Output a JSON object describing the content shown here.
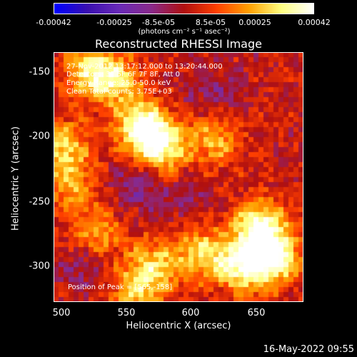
{
  "colorbar": {
    "ticks": [
      "-0.00042",
      "-0.00025",
      "-8.5e-05",
      "8.5e-05",
      "0.00025",
      "0.00042"
    ],
    "units": "(photons cm⁻² s⁻¹ asec⁻²)",
    "range": [
      -0.00042,
      0.00042
    ],
    "colormap": [
      "#0000ff",
      "#3a0fb0",
      "#6a2bb8",
      "#8a2a8a",
      "#b01010",
      "#ff4000",
      "#ffa000",
      "#ffff80",
      "#ffffff"
    ]
  },
  "chart_data": {
    "type": "heatmap",
    "title": "Reconstructed RHESSI Image",
    "xlabel": "Heliocentric X (arcsec)",
    "ylabel": "Heliocentric Y (arcsec)",
    "xlim": [
      498,
      688
    ],
    "ylim": [
      -328,
      -138
    ],
    "xticks": [
      "500",
      "550",
      "600",
      "650"
    ],
    "yticks": [
      "-150",
      "-200",
      "-250",
      "-300"
    ],
    "grid": false,
    "annotations": [
      "27-Nov-2012 13:17:12.000 to 13:20:44.000",
      "Detectors: 3F 5F 6F 7F 8F, Att 0",
      "Energy Range: 25.0-50.0 keV",
      "Clean    Total counts: 3.75E+03"
    ],
    "peak_label": "Position of Peak = [565,-158]",
    "peak_position": [
      565,
      -158
    ],
    "bright_regions": [
      {
        "x": 545,
        "y": -160,
        "level": 0.6
      },
      {
        "x": 525,
        "y": -152,
        "level": 0.6
      },
      {
        "x": 565,
        "y": -195,
        "level": 0.85
      },
      {
        "x": 580,
        "y": -210,
        "level": 0.75
      },
      {
        "x": 505,
        "y": -210,
        "level": 0.6
      },
      {
        "x": 620,
        "y": -205,
        "level": 0.5
      },
      {
        "x": 655,
        "y": -270,
        "level": 0.85
      },
      {
        "x": 665,
        "y": -295,
        "level": 0.9
      },
      {
        "x": 640,
        "y": -300,
        "level": 0.8
      },
      {
        "x": 610,
        "y": -290,
        "level": 0.6
      },
      {
        "x": 575,
        "y": -300,
        "level": 0.55
      },
      {
        "x": 560,
        "y": -320,
        "level": 0.55
      },
      {
        "x": 530,
        "y": -275,
        "level": 0.5
      },
      {
        "x": 510,
        "y": -240,
        "level": 0.45
      }
    ],
    "dark_regions": [
      {
        "x": 560,
        "y": -240,
        "level": -0.3
      },
      {
        "x": 520,
        "y": -300,
        "level": -0.25
      },
      {
        "x": 620,
        "y": -170,
        "level": -0.25
      },
      {
        "x": 600,
        "y": -250,
        "level": -0.2
      }
    ]
  },
  "timestamp": "16-May-2022 09:55"
}
